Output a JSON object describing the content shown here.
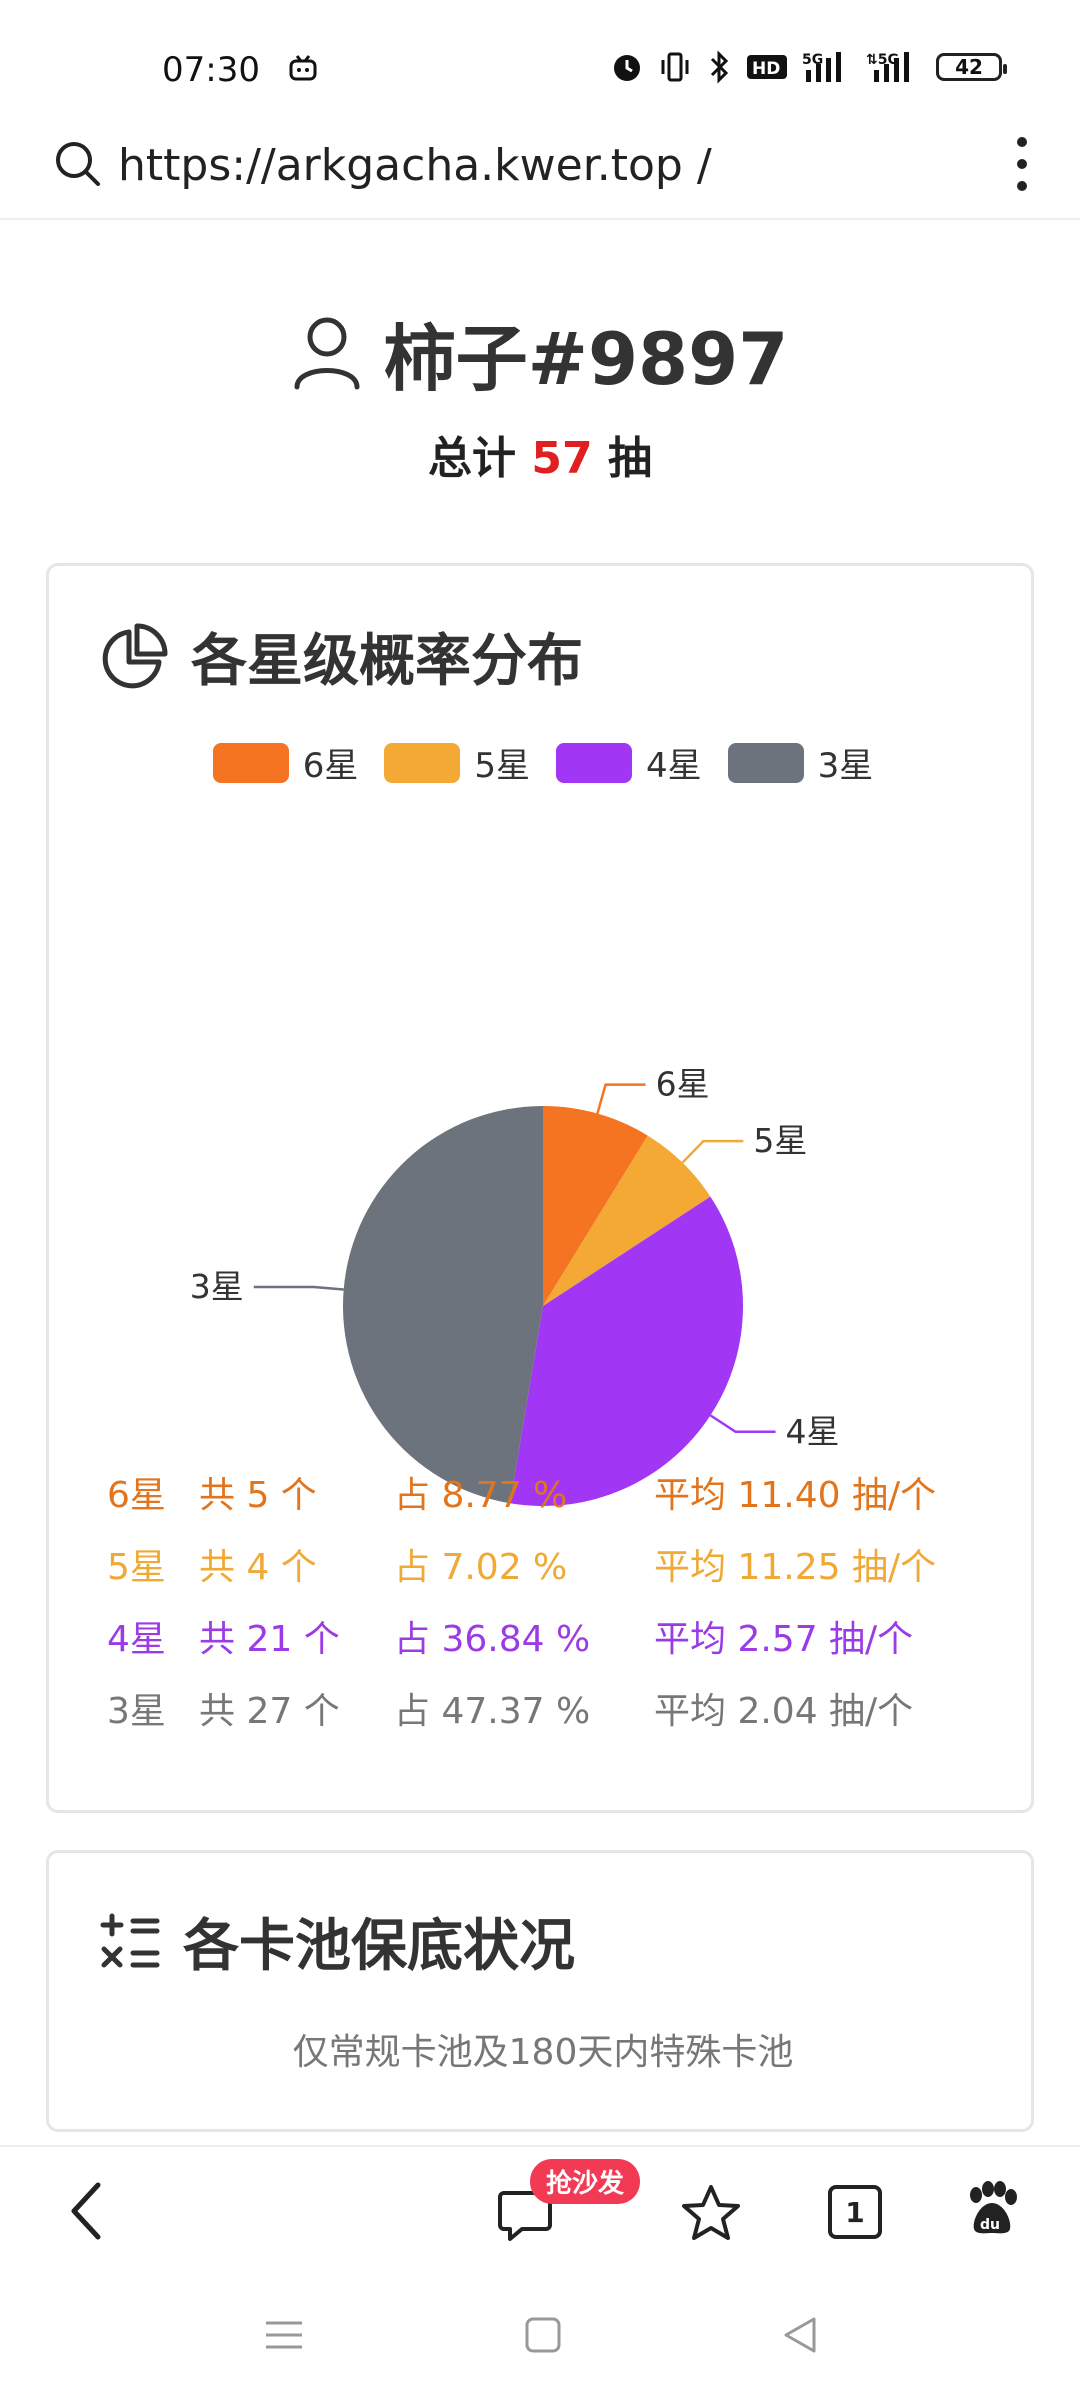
{
  "status_bar": {
    "time": "07:30",
    "battery": "42",
    "icons": [
      "tv-icon",
      "alarm-icon",
      "vibrate-icon",
      "bluetooth-icon",
      "hd-icon",
      "signal-5g-icon",
      "signal-5g-icon-2",
      "battery-icon"
    ]
  },
  "browser": {
    "url": "https://arkgacha.kwer.top /"
  },
  "header": {
    "user_name": "柿子#9897",
    "total_prefix": "总计",
    "total_value": "57",
    "total_suffix": "抽"
  },
  "distribution": {
    "title": "各星级概率分布",
    "legend": [
      {
        "label": "6星",
        "color": "#f47421"
      },
      {
        "label": "5星",
        "color": "#f5a935"
      },
      {
        "label": "4星",
        "color": "#a136f5"
      },
      {
        "label": "3星",
        "color": "#6c737d"
      }
    ],
    "rows": [
      {
        "star": "6星",
        "count": "共 5 个",
        "pct": "占 8.77 %",
        "avg": "平均 11.40 抽/个",
        "color": "#e2741c"
      },
      {
        "star": "5星",
        "count": "共 4 个",
        "pct": "占 7.02 %",
        "avg": "平均 11.25 抽/个",
        "color": "#f0a934"
      },
      {
        "star": "4星",
        "count": "共 21 个",
        "pct": "占 36.84 %",
        "avg": "平均 2.57 抽/个",
        "color": "#9b3be6"
      },
      {
        "star": "3星",
        "count": "共 27 个",
        "pct": "占 47.37 %",
        "avg": "平均 2.04 抽/个",
        "color": "#777777"
      }
    ]
  },
  "chart_data": {
    "type": "pie",
    "categories": [
      "6星",
      "5星",
      "4星",
      "3星"
    ],
    "values": [
      5,
      4,
      21,
      27
    ],
    "colors": [
      "#f47421",
      "#f5a935",
      "#a136f5",
      "#6c737d"
    ],
    "legend_position": "top"
  },
  "pity": {
    "title": "各卡池保底状况",
    "subtitle": "仅常规卡池及180天内特殊卡池"
  },
  "toolbar": {
    "badge": "抢沙发",
    "tab_count": "1"
  }
}
